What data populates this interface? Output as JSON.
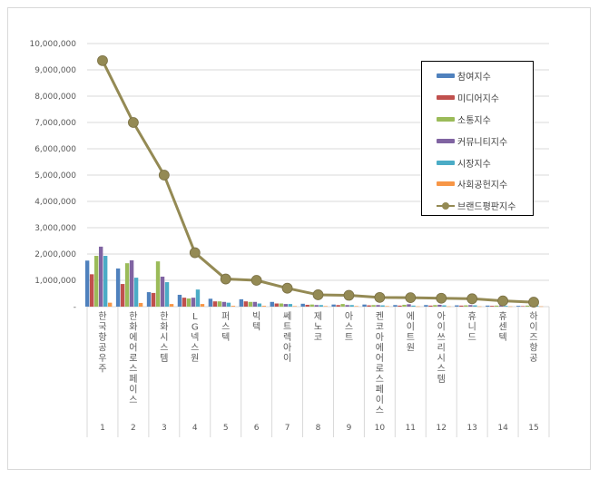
{
  "chart_data": {
    "type": "bar+line",
    "title": "",
    "xlabel": "",
    "ylabel": "",
    "ylim": [
      0,
      10000000
    ],
    "yticks": [
      "-",
      "1,000,000",
      "2,000,000",
      "3,000,000",
      "4,000,000",
      "5,000,000",
      "6,000,000",
      "7,000,000",
      "8,000,000",
      "9,000,000",
      "10,000,000"
    ],
    "grid": true,
    "legend_position": "right-inset",
    "estimation_note": "Line points and bars for groups 1-4 are read from pixels (~±50k). Bars for groups 5-15 are too short to resolve and are rough proportional estimates, not per-bar readings.",
    "categories": [
      "한국항공우주",
      "한화에어로스페이스",
      "한화시스템",
      "LG넥스원",
      "퍼스텍",
      "빅텍",
      "쎄트렉아이",
      "제노코",
      "아스트",
      "켄코아에어로스페이스",
      "에이트원",
      "아이쓰리시스템",
      "휴니드",
      "휴센텍",
      "하이즈항공"
    ],
    "category_numbers": [
      "1",
      "2",
      "3",
      "4",
      "5",
      "6",
      "7",
      "8",
      "9",
      "10",
      "11",
      "12",
      "13",
      "14",
      "15"
    ],
    "series": [
      {
        "name": "참여지수",
        "type": "bar",
        "color": "#4f81bd",
        "values": [
          1750000,
          1450000,
          550000,
          450000,
          300000,
          280000,
          180000,
          110000,
          80000,
          80000,
          60000,
          60000,
          50000,
          40000,
          30000
        ]
      },
      {
        "name": "미디어지수",
        "type": "bar",
        "color": "#c0504d",
        "values": [
          1230000,
          860000,
          520000,
          340000,
          200000,
          200000,
          120000,
          70000,
          60000,
          50000,
          40000,
          40000,
          40000,
          30000,
          20000
        ]
      },
      {
        "name": "소통지수",
        "type": "bar",
        "color": "#9bbb59",
        "values": [
          1930000,
          1650000,
          1720000,
          310000,
          200000,
          180000,
          120000,
          80000,
          100000,
          60000,
          70000,
          60000,
          50000,
          40000,
          40000
        ]
      },
      {
        "name": "커뮤니티지수",
        "type": "bar",
        "color": "#8064a2",
        "values": [
          2280000,
          1760000,
          1140000,
          340000,
          180000,
          180000,
          100000,
          60000,
          60000,
          60000,
          90000,
          70000,
          60000,
          50000,
          30000
        ]
      },
      {
        "name": "시장지수",
        "type": "bar",
        "color": "#4bacc6",
        "values": [
          1930000,
          1100000,
          930000,
          650000,
          150000,
          120000,
          100000,
          60000,
          60000,
          50000,
          40000,
          50000,
          50000,
          30000,
          30000
        ]
      },
      {
        "name": "사회공헌지수",
        "type": "bar",
        "color": "#f79646",
        "values": [
          150000,
          140000,
          100000,
          100000,
          30000,
          30000,
          20000,
          20000,
          20000,
          20000,
          10000,
          10000,
          10000,
          10000,
          10000
        ]
      },
      {
        "name": "브랜드평판지수",
        "type": "line",
        "color": "#948a54",
        "values": [
          9350000,
          7000000,
          5000000,
          2050000,
          1050000,
          1000000,
          700000,
          450000,
          430000,
          350000,
          340000,
          320000,
          300000,
          220000,
          170000
        ]
      }
    ]
  },
  "legend": {
    "items": [
      {
        "label": "참여지수",
        "color": "#4f81bd",
        "kind": "bar"
      },
      {
        "label": "미디어지수",
        "color": "#c0504d",
        "kind": "bar"
      },
      {
        "label": "소통지수",
        "color": "#9bbb59",
        "kind": "bar"
      },
      {
        "label": "커뮤니티지수",
        "color": "#8064a2",
        "kind": "bar"
      },
      {
        "label": "시장지수",
        "color": "#4bacc6",
        "kind": "bar"
      },
      {
        "label": "사회공헌지수",
        "color": "#f79646",
        "kind": "bar"
      },
      {
        "label": "브랜드평판지수",
        "color": "#948a54",
        "kind": "line"
      }
    ]
  }
}
